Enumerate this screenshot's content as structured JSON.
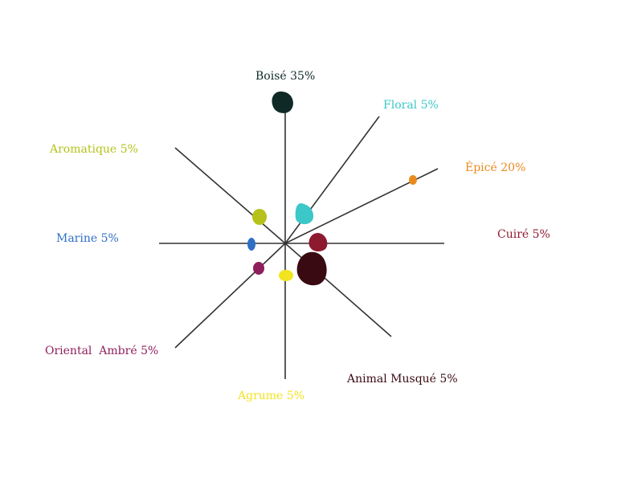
{
  "chart_data": {
    "type": "radial-dot",
    "categories": [
      {
        "name": "Boisé",
        "percent": "35%",
        "value": 35,
        "color": "#0f2a26"
      },
      {
        "name": "Floral",
        "percent": "5%",
        "value": 5,
        "color": "#3cc7c9"
      },
      {
        "name": "Épicé",
        "percent": "20%",
        "value": 20,
        "color": "#ea8a1c"
      },
      {
        "name": "Cuiré",
        "percent": "5%",
        "value": 5,
        "color": "#8e1a30"
      },
      {
        "name": "Animal Musqué",
        "percent": "5%",
        "value": 5,
        "color": "#3a0a12"
      },
      {
        "name": "Agrume",
        "percent": "5%",
        "value": 5,
        "color": "#f2e41e"
      },
      {
        "name": "Oriental  Ambré",
        "percent": "5%",
        "value": 5,
        "color": "#8e1f5c"
      },
      {
        "name": "Marine",
        "percent": "5%",
        "value": 5,
        "color": "#2f6fc4"
      },
      {
        "name": "Aromatique",
        "percent": "5%",
        "value": 5,
        "color": "#b6c21a"
      }
    ]
  }
}
